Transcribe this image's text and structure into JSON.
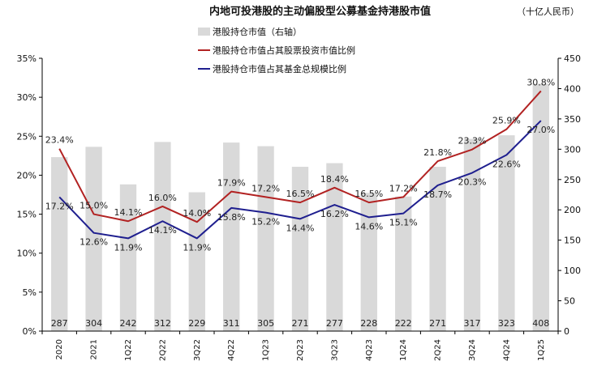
{
  "chart_data": {
    "type": "bar+line",
    "title": "内地可投港股的主动偏股型公募基金持港股市值",
    "unit_label": "（十亿人民币）",
    "categories": [
      "2020",
      "2021",
      "1Q22",
      "2Q22",
      "3Q22",
      "4Q22",
      "1Q23",
      "2Q23",
      "3Q23",
      "4Q23",
      "1Q24",
      "2Q24",
      "3Q24",
      "4Q24",
      "1Q25"
    ],
    "bars": {
      "name": "港股持仓市值（右轴）",
      "values": [
        287,
        304,
        242,
        312,
        229,
        311,
        305,
        271,
        277,
        228,
        222,
        271,
        317,
        323,
        408
      ]
    },
    "series": [
      {
        "name": "港股持仓市值占其股票投资市值比例",
        "values": [
          23.4,
          15.0,
          14.1,
          16.0,
          14.0,
          17.9,
          17.2,
          16.5,
          18.4,
          16.5,
          17.2,
          21.8,
          23.3,
          25.9,
          30.8
        ],
        "labels": [
          "23.4%",
          "15.0%",
          "14.1%",
          "16.0%",
          "14.0%",
          "17.9%",
          "17.2%",
          "16.5%",
          "18.4%",
          "16.5%",
          "17.2%",
          "21.8%",
          "23.3%",
          "25.9%",
          "30.8%"
        ]
      },
      {
        "name": "港股持仓市值占其基金总规模比例",
        "values": [
          17.2,
          12.6,
          11.9,
          14.1,
          11.9,
          15.8,
          15.2,
          14.4,
          16.2,
          14.6,
          15.1,
          18.7,
          20.3,
          22.6,
          27.0
        ],
        "labels": [
          "17.2%",
          "12.6%",
          "11.9%",
          "14.1%",
          "11.9%",
          "15.8%",
          "15.2%",
          "14.4%",
          "16.2%",
          "14.6%",
          "15.1%",
          "18.7%",
          "20.3%",
          "22.6%",
          "27.0%"
        ]
      }
    ],
    "y_left": {
      "min": 0,
      "max": 35,
      "step": 5,
      "ticks": [
        "0%",
        "5%",
        "10%",
        "15%",
        "20%",
        "25%",
        "30%",
        "35%"
      ]
    },
    "y_right": {
      "min": 0,
      "max": 450,
      "step": 50,
      "ticks": [
        "0",
        "50",
        "100",
        "150",
        "200",
        "250",
        "300",
        "350",
        "400",
        "450"
      ]
    },
    "grid": false,
    "legend_position": "top-left",
    "colors": {
      "bars": "#d9d9d9",
      "series1": "#b22222",
      "series2": "#1f1f8f",
      "axis": "#000000"
    }
  }
}
